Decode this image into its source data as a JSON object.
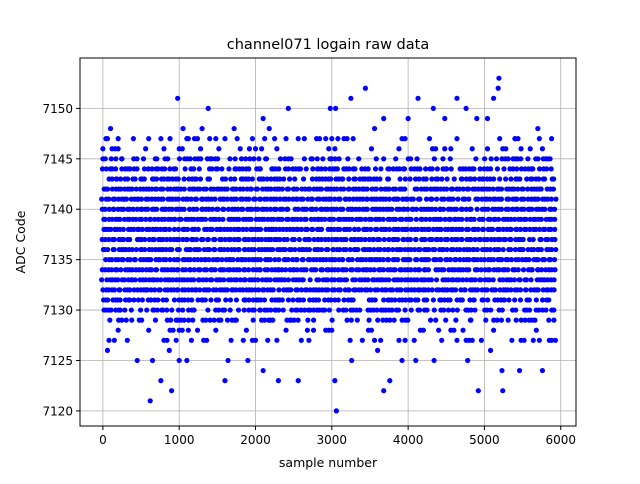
{
  "chart_data": {
    "type": "scatter",
    "title": "channel071 logain raw data",
    "xlabel": "sample number",
    "ylabel": "ADC Code",
    "xlim": [
      -300,
      6200
    ],
    "ylim": [
      7118.5,
      7155
    ],
    "x_ticks": [
      0,
      1000,
      2000,
      3000,
      4000,
      5000,
      6000
    ],
    "x_tick_labels": [
      "0",
      "1000",
      "2000",
      "3000",
      "4000",
      "5000",
      "6000"
    ],
    "y_ticks": [
      7120,
      7125,
      7130,
      7135,
      7140,
      7145,
      7150
    ],
    "y_tick_labels": [
      "7120",
      "7125",
      "7130",
      "7135",
      "7140",
      "7145",
      "7150"
    ],
    "grid": true,
    "marker_color": "#0000ff",
    "series": [
      {
        "x_start": 0,
        "x_end": 5940,
        "dense_band": [
          7129,
          7145
        ],
        "values_sampled_note": "",
        "points": [
          [
            0,
            7145
          ],
          [
            60,
            7147
          ],
          [
            100,
            7148
          ],
          [
            200,
            7147
          ],
          [
            250,
            7145
          ],
          [
            400,
            7147
          ],
          [
            560,
            7146
          ],
          [
            980,
            7151
          ],
          [
            1050,
            7148
          ],
          [
            1100,
            7147
          ],
          [
            1300,
            7148
          ],
          [
            1380,
            7150
          ],
          [
            1480,
            7147
          ],
          [
            1720,
            7148
          ],
          [
            2100,
            7149
          ],
          [
            2180,
            7148
          ],
          [
            2250,
            7147
          ],
          [
            2430,
            7150
          ],
          [
            2840,
            7147
          ],
          [
            2980,
            7150
          ],
          [
            3050,
            7150
          ],
          [
            3250,
            7151
          ],
          [
            3440,
            7152
          ],
          [
            3560,
            7148
          ],
          [
            3680,
            7149
          ],
          [
            4000,
            7149
          ],
          [
            4130,
            7151
          ],
          [
            4330,
            7150
          ],
          [
            4480,
            7149
          ],
          [
            4640,
            7151
          ],
          [
            4760,
            7150
          ],
          [
            4900,
            7149
          ],
          [
            5040,
            7149
          ],
          [
            5120,
            7151
          ],
          [
            5180,
            7152
          ],
          [
            5190,
            7153
          ],
          [
            5400,
            7147
          ],
          [
            5700,
            7148
          ],
          [
            5860,
            7145
          ],
          [
            60,
            7126
          ],
          [
            150,
            7127
          ],
          [
            450,
            7125
          ],
          [
            620,
            7121
          ],
          [
            650,
            7125
          ],
          [
            760,
            7123
          ],
          [
            870,
            7126
          ],
          [
            900,
            7122
          ],
          [
            1000,
            7125
          ],
          [
            1100,
            7125
          ],
          [
            1600,
            7123
          ],
          [
            1640,
            7125
          ],
          [
            1900,
            7125
          ],
          [
            2100,
            7124
          ],
          [
            2300,
            7123
          ],
          [
            2560,
            7123
          ],
          [
            2700,
            7127
          ],
          [
            3000,
            7128
          ],
          [
            3040,
            7123
          ],
          [
            3060,
            7120
          ],
          [
            3260,
            7125
          ],
          [
            3600,
            7126
          ],
          [
            3680,
            7122
          ],
          [
            3760,
            7123
          ],
          [
            3920,
            7125
          ],
          [
            4100,
            7125
          ],
          [
            4340,
            7125
          ],
          [
            4780,
            7125
          ],
          [
            4920,
            7122
          ],
          [
            5080,
            7126
          ],
          [
            5230,
            7124
          ],
          [
            5240,
            7122
          ],
          [
            5460,
            7124
          ],
          [
            5760,
            7124
          ],
          [
            5850,
            7127
          ],
          [
            5930,
            7127
          ]
        ]
      }
    ]
  }
}
